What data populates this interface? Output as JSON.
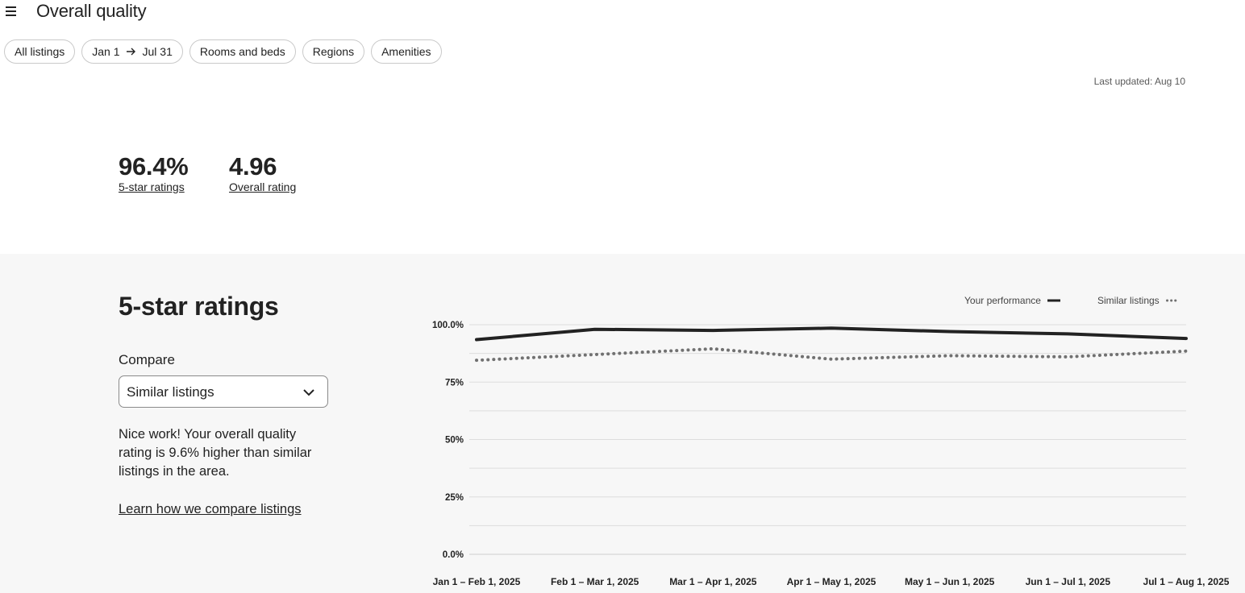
{
  "header": {
    "title": "Overall quality"
  },
  "filters": {
    "all_listings": "All listings",
    "date_start": "Jan 1",
    "date_end": "Jul 31",
    "rooms_and_beds": "Rooms and beds",
    "regions": "Regions",
    "amenities": "Amenities"
  },
  "last_updated": "Last updated: Aug 10",
  "metrics": [
    {
      "value": "96.4%",
      "label": "5-star ratings"
    },
    {
      "value": "4.96",
      "label": "Overall rating"
    }
  ],
  "section": {
    "title": "5-star ratings",
    "compare_label": "Compare",
    "compare_value": "Similar listings",
    "message": "Nice work! Your overall quality rating is 9.6% higher than similar listings in the area.",
    "learn_link": "Learn how we compare listings"
  },
  "colors": {
    "accent": "#222222",
    "similar_line": "#717171",
    "section_bg": "#f7f7f7",
    "gridline": "#dddddd"
  },
  "icons": {
    "menu": "hamburger-menu-icon",
    "compare_dropdown": "chevron-down-icon",
    "date_arrow": "arrow-right-icon"
  },
  "chart_data": {
    "type": "line",
    "title": "",
    "xlabel": "",
    "ylabel": "",
    "ylim": [
      0,
      100
    ],
    "y_ticks": [
      "0.0%",
      "25%",
      "50%",
      "75%",
      "100.0%"
    ],
    "categories": [
      "Jan 1 – Feb 1, 2025",
      "Feb 1 – Mar 1, 2025",
      "Mar 1 – Apr 1, 2025",
      "Apr 1 – May 1, 2025",
      "May 1 – Jun 1, 2025",
      "Jun 1 – Jul 1, 2025",
      "Jul 1 – Aug 1, 2025"
    ],
    "series": [
      {
        "name": "Your performance",
        "style": "solid",
        "values": [
          93.5,
          98.0,
          97.5,
          98.5,
          97.0,
          96.0,
          94.0
        ]
      },
      {
        "name": "Similar listings",
        "style": "dotted",
        "values": [
          84.5,
          87.0,
          89.5,
          85.0,
          86.5,
          86.0,
          88.5
        ]
      }
    ],
    "legend_position": "top-right",
    "grid": true
  }
}
